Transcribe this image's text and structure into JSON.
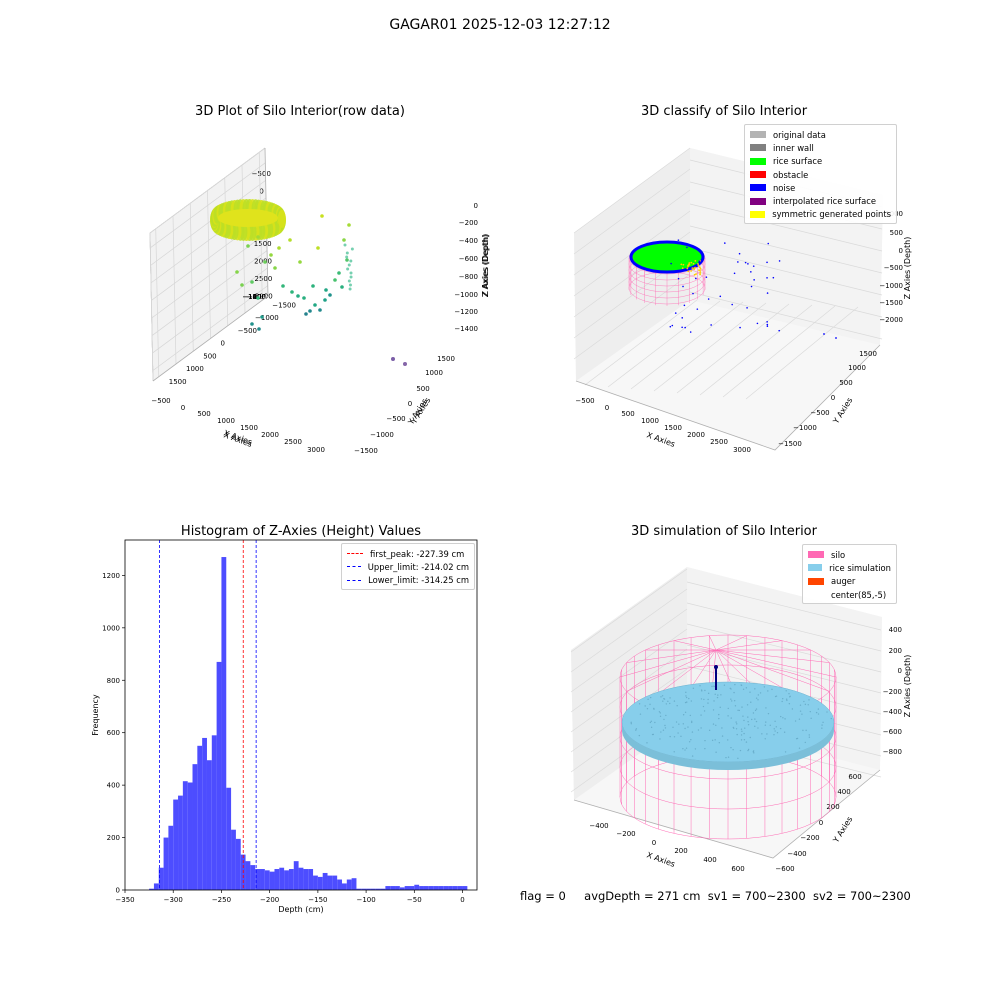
{
  "figure": {
    "suptitle": "GAGAR01 2025-12-03 12:27:12",
    "status": {
      "flag": "flag = 0",
      "avg_depth": "avgDepth = 271 cm",
      "sv1": "sv1 = 700~2300",
      "sv2": "sv2 = 700~2300"
    }
  },
  "chart_data": [
    {
      "type": "scatter",
      "title": "3D Plot of Silo Interior(row data)",
      "xlabel": "X Axies",
      "ylabel": "Y Axies",
      "zlabel": "Z Axies (Depth)",
      "x_ticks": [
        "−500",
        "0",
        "500",
        "1000",
        "1500",
        "2000",
        "2500",
        "3000"
      ],
      "y_ticks": [
        "−1500",
        "−1000",
        "−500",
        "0",
        "500",
        "1000",
        "1500"
      ],
      "z_ticks": [
        "0",
        "−200",
        "−400",
        "−600",
        "−800",
        "−1000",
        "−1200",
        "−1400"
      ],
      "colormap": "viridis"
    },
    {
      "type": "scatter",
      "title": "3D classify of Silo Interior",
      "xlabel": "X Axies",
      "ylabel": "Y Axies",
      "zlabel": "Z Axies (Depth)",
      "x_ticks": [
        "−500",
        "0",
        "500",
        "1000",
        "1500",
        "2000",
        "2500",
        "3000"
      ],
      "y_ticks": [
        "−1500",
        "−1000",
        "−500",
        "0",
        "500",
        "1000",
        "1500"
      ],
      "z_ticks": [
        "1000",
        "500",
        "0",
        "−500",
        "−1000",
        "−1500",
        "−2000"
      ],
      "legend": [
        {
          "label": "original data",
          "color": "#b3b3b3"
        },
        {
          "label": "inner wall",
          "color": "#808080"
        },
        {
          "label": "rice surface",
          "color": "#00ff00"
        },
        {
          "label": "obstacle",
          "color": "#ff0000"
        },
        {
          "label": "noise",
          "color": "#0000ff"
        },
        {
          "label": "interpolated rice surface",
          "color": "#800080"
        },
        {
          "label": "symmetric generated points",
          "color": "#ffff00"
        }
      ]
    },
    {
      "type": "bar",
      "title": "Histogram of Z-Axies (Height) Values",
      "xlabel": "Depth (cm)",
      "ylabel": "Frequency",
      "xlim": [
        -350,
        15
      ],
      "ylim": [
        0,
        1335
      ],
      "x_ticks": [
        -350,
        -300,
        -250,
        -200,
        -150,
        -100,
        -50,
        0
      ],
      "y_ticks": [
        0,
        200,
        400,
        600,
        800,
        1000,
        1200
      ],
      "bar_color": "#4d4dff",
      "bin_width": 5,
      "bin_starts": [
        -325,
        -320,
        -315,
        -310,
        -305,
        -300,
        -295,
        -290,
        -285,
        -280,
        -275,
        -270,
        -265,
        -260,
        -255,
        -250,
        -245,
        -240,
        -235,
        -230,
        -225,
        -220,
        -215,
        -210,
        -205,
        -200,
        -195,
        -190,
        -185,
        -180,
        -175,
        -170,
        -165,
        -160,
        -155,
        -150,
        -145,
        -140,
        -135,
        -130,
        -125,
        -120,
        -115,
        -110,
        -105,
        -100,
        -95,
        -90,
        -85,
        -80,
        -75,
        -70,
        -65,
        -60,
        -55,
        -50,
        -45,
        -40,
        -35,
        -30,
        -25,
        -20,
        -15,
        -10,
        -5,
        0
      ],
      "values": [
        5,
        25,
        85,
        200,
        245,
        345,
        360,
        415,
        410,
        480,
        550,
        580,
        495,
        590,
        870,
        1270,
        390,
        230,
        195,
        135,
        110,
        95,
        80,
        80,
        75,
        70,
        80,
        85,
        75,
        80,
        110,
        85,
        80,
        80,
        55,
        50,
        65,
        55,
        55,
        40,
        25,
        40,
        45,
        5,
        5,
        5,
        5,
        5,
        5,
        15,
        15,
        15,
        10,
        15,
        15,
        20,
        15,
        15,
        15,
        15,
        15,
        15,
        15,
        15,
        15,
        15
      ],
      "vlines": [
        {
          "label": "first_peak: -227.39 cm",
          "x": -227.39,
          "color": "#ff0000"
        },
        {
          "label": "Upper_limit: -214.02 cm",
          "x": -214.02,
          "color": "#0000ff"
        },
        {
          "label": "Lower_limit: -314.25 cm",
          "x": -314.25,
          "color": "#0000ff"
        }
      ]
    },
    {
      "type": "scatter",
      "title": "3D simulation of Silo Interior",
      "xlabel": "X Axies",
      "ylabel": "Y Axies",
      "zlabel": "Z Axies (Depth)",
      "x_ticks": [
        "−400",
        "−200",
        "0",
        "200",
        "400",
        "600"
      ],
      "y_ticks": [
        "−600",
        "−400",
        "−200",
        "0",
        "200",
        "400",
        "600"
      ],
      "z_ticks": [
        "400",
        "200",
        "0",
        "−200",
        "−400",
        "−600",
        "−800"
      ],
      "legend": [
        {
          "label": "silo",
          "color": "#ff69b4"
        },
        {
          "label": "rice simulation",
          "color": "#87ceeb"
        },
        {
          "label": "auger",
          "color": "#ff4500"
        },
        {
          "label": "center(85,-5)",
          "color": ""
        }
      ]
    }
  ]
}
